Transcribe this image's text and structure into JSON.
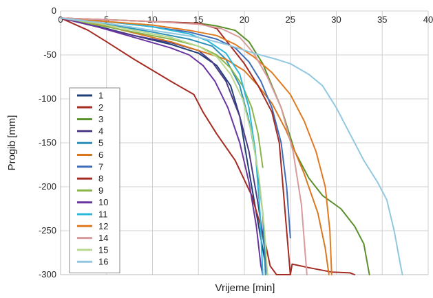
{
  "chart_data": {
    "type": "line",
    "title": "",
    "xlabel": "Vrijeme [min]",
    "ylabel": "Progib [mm]",
    "xlim": [
      0,
      40
    ],
    "ylim": [
      -300,
      0
    ],
    "xticks": [
      0,
      5,
      10,
      15,
      20,
      25,
      30,
      35,
      40
    ],
    "yticks": [
      0,
      -50,
      -100,
      -150,
      -200,
      -250,
      -300
    ],
    "x_tick_labels": [
      "0",
      "5",
      "10",
      "15",
      "20",
      "25",
      "30",
      "35",
      "40"
    ],
    "y_tick_labels": [
      "0",
      "-50",
      "-100",
      "-150",
      "-200",
      "-250",
      "-300"
    ],
    "grid": true,
    "legend_position": "bottom-left",
    "series": [
      {
        "name": "1",
        "color": "#1f3e78",
        "points": [
          [
            0,
            -8
          ],
          [
            2,
            -12
          ],
          [
            5,
            -20
          ],
          [
            8,
            -28
          ],
          [
            12,
            -38
          ],
          [
            15,
            -48
          ],
          [
            17,
            -62
          ],
          [
            18.5,
            -85
          ],
          [
            19.5,
            -120
          ],
          [
            20.3,
            -170
          ],
          [
            21.3,
            -230
          ],
          [
            22.5,
            -300
          ]
        ]
      },
      {
        "name": "2",
        "color": "#a52a22",
        "points": [
          [
            0,
            -8
          ],
          [
            3,
            -22
          ],
          [
            5,
            -35
          ],
          [
            8,
            -55
          ],
          [
            12,
            -80
          ],
          [
            14.5,
            -95
          ],
          [
            15.5,
            -115
          ],
          [
            17,
            -140
          ],
          [
            19,
            -170
          ],
          [
            20.8,
            -210
          ],
          [
            22.2,
            -260
          ],
          [
            22.8,
            -290
          ],
          [
            23.5,
            -300
          ],
          [
            25,
            -300
          ],
          [
            25.2,
            -288
          ],
          [
            27,
            -292
          ],
          [
            29.5,
            -297
          ],
          [
            31.5,
            -298
          ],
          [
            32,
            -300
          ]
        ]
      },
      {
        "name": "3",
        "color": "#5a8f2a",
        "points": [
          [
            0,
            -8
          ],
          [
            5,
            -10
          ],
          [
            10,
            -12
          ],
          [
            15,
            -14
          ],
          [
            17,
            -17
          ],
          [
            19,
            -22
          ],
          [
            20.5,
            -35
          ],
          [
            22,
            -60
          ],
          [
            24,
            -110
          ],
          [
            25.5,
            -160
          ],
          [
            27,
            -190
          ],
          [
            28.5,
            -210
          ],
          [
            30.5,
            -225
          ],
          [
            32,
            -245
          ],
          [
            33,
            -265
          ],
          [
            33.6,
            -300
          ]
        ]
      },
      {
        "name": "4",
        "color": "#4c3a85",
        "points": [
          [
            0,
            -8
          ],
          [
            4,
            -18
          ],
          [
            8,
            -28
          ],
          [
            12,
            -36
          ],
          [
            15,
            -45
          ],
          [
            16.5,
            -58
          ],
          [
            18,
            -80
          ],
          [
            19.5,
            -120
          ],
          [
            20.5,
            -160
          ],
          [
            21.5,
            -220
          ],
          [
            22.2,
            -270
          ],
          [
            22.5,
            -300
          ]
        ]
      },
      {
        "name": "5",
        "color": "#2b8fb8",
        "points": [
          [
            0,
            -8
          ],
          [
            5,
            -15
          ],
          [
            10,
            -24
          ],
          [
            14,
            -32
          ],
          [
            16.5,
            -40
          ],
          [
            18,
            -55
          ],
          [
            19.5,
            -85
          ],
          [
            20.5,
            -125
          ],
          [
            21.3,
            -170
          ],
          [
            22,
            -230
          ],
          [
            22.3,
            -300
          ]
        ]
      },
      {
        "name": "6",
        "color": "#d9771f",
        "points": [
          [
            0,
            -8
          ],
          [
            4,
            -15
          ],
          [
            8,
            -25
          ],
          [
            12,
            -35
          ],
          [
            15,
            -45
          ],
          [
            18,
            -55
          ],
          [
            20,
            -68
          ],
          [
            21.5,
            -85
          ],
          [
            23,
            -105
          ],
          [
            24.5,
            -135
          ],
          [
            26.5,
            -185
          ],
          [
            28,
            -230
          ],
          [
            28.8,
            -270
          ],
          [
            29.2,
            -300
          ]
        ]
      },
      {
        "name": "7",
        "color": "#3f6cb8",
        "points": [
          [
            0,
            -8
          ],
          [
            5,
            -12
          ],
          [
            10,
            -18
          ],
          [
            14,
            -24
          ],
          [
            17,
            -32
          ],
          [
            19,
            -42
          ],
          [
            20.5,
            -58
          ],
          [
            21.8,
            -80
          ],
          [
            23,
            -110
          ],
          [
            24,
            -150
          ],
          [
            24.6,
            -200
          ],
          [
            25,
            -258
          ]
        ]
      },
      {
        "name": "8",
        "color": "#a52a22",
        "points": [
          [
            0,
            -8
          ],
          [
            5,
            -10
          ],
          [
            10,
            -12
          ],
          [
            15,
            -14
          ],
          [
            17,
            -20
          ],
          [
            18.5,
            -40
          ],
          [
            20,
            -60
          ],
          [
            21.5,
            -85
          ],
          [
            23,
            -115
          ],
          [
            23.8,
            -150
          ],
          [
            24.2,
            -200
          ],
          [
            24.6,
            -250
          ],
          [
            25,
            -300
          ]
        ]
      },
      {
        "name": "9",
        "color": "#8ab44a",
        "points": [
          [
            0,
            -8
          ],
          [
            4,
            -16
          ],
          [
            8,
            -24
          ],
          [
            12,
            -32
          ],
          [
            15,
            -40
          ],
          [
            17,
            -50
          ],
          [
            18.5,
            -65
          ],
          [
            19.8,
            -85
          ],
          [
            20.8,
            -110
          ],
          [
            21.5,
            -140
          ],
          [
            22,
            -178
          ]
        ]
      },
      {
        "name": "10",
        "color": "#6a35a0",
        "points": [
          [
            0,
            -8
          ],
          [
            4,
            -18
          ],
          [
            8,
            -30
          ],
          [
            12,
            -42
          ],
          [
            14,
            -50
          ],
          [
            15.5,
            -62
          ],
          [
            16.8,
            -80
          ],
          [
            18.2,
            -110
          ],
          [
            19.5,
            -150
          ],
          [
            20.5,
            -195
          ],
          [
            21.3,
            -245
          ],
          [
            21.8,
            -290
          ],
          [
            22,
            -300
          ]
        ]
      },
      {
        "name": "11",
        "color": "#2bb8d8",
        "points": [
          [
            0,
            -8
          ],
          [
            5,
            -12
          ],
          [
            10,
            -18
          ],
          [
            14,
            -26
          ],
          [
            16,
            -34
          ],
          [
            18,
            -48
          ],
          [
            19.5,
            -72
          ],
          [
            20.5,
            -110
          ],
          [
            21.2,
            -160
          ],
          [
            21.7,
            -230
          ],
          [
            22,
            -300
          ]
        ]
      },
      {
        "name": "12",
        "color": "#e07a20",
        "points": [
          [
            0,
            -8
          ],
          [
            5,
            -12
          ],
          [
            10,
            -16
          ],
          [
            14,
            -22
          ],
          [
            17,
            -28
          ],
          [
            19,
            -38
          ],
          [
            21,
            -52
          ],
          [
            23,
            -70
          ],
          [
            25,
            -95
          ],
          [
            26.5,
            -125
          ],
          [
            27.8,
            -160
          ],
          [
            28.8,
            -200
          ],
          [
            29.3,
            -250
          ],
          [
            29.5,
            -300
          ]
        ]
      },
      {
        "name": "14",
        "color": "#d89a9a",
        "points": [
          [
            0,
            -8
          ],
          [
            5,
            -10
          ],
          [
            10,
            -12
          ],
          [
            15,
            -15
          ],
          [
            17.5,
            -20
          ],
          [
            19.5,
            -30
          ],
          [
            21,
            -48
          ],
          [
            22.5,
            -75
          ],
          [
            24,
            -110
          ],
          [
            25.3,
            -160
          ],
          [
            26.2,
            -220
          ],
          [
            26.8,
            -300
          ]
        ]
      },
      {
        "name": "15",
        "color": "#b8d890",
        "points": [
          [
            0,
            -8
          ],
          [
            4,
            -14
          ],
          [
            8,
            -22
          ],
          [
            12,
            -30
          ],
          [
            15,
            -40
          ],
          [
            17,
            -52
          ],
          [
            18.5,
            -72
          ],
          [
            19.8,
            -100
          ],
          [
            20.8,
            -140
          ],
          [
            21.6,
            -190
          ],
          [
            22.2,
            -250
          ],
          [
            22.5,
            -300
          ]
        ]
      },
      {
        "name": "16",
        "color": "#8fc8e0",
        "points": [
          [
            0,
            -8
          ],
          [
            5,
            -14
          ],
          [
            10,
            -22
          ],
          [
            15,
            -30
          ],
          [
            18,
            -38
          ],
          [
            21,
            -48
          ],
          [
            23.5,
            -55
          ],
          [
            25,
            -60
          ],
          [
            27,
            -72
          ],
          [
            28.5,
            -85
          ],
          [
            30,
            -110
          ],
          [
            31.5,
            -140
          ],
          [
            33,
            -170
          ],
          [
            34.5,
            -195
          ],
          [
            35.5,
            -215
          ],
          [
            36.3,
            -250
          ],
          [
            37,
            -290
          ],
          [
            37.2,
            -300
          ]
        ]
      }
    ]
  }
}
